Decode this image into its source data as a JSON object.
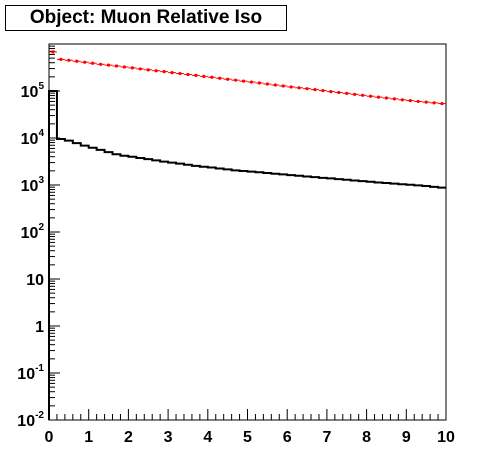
{
  "chart_data": {
    "type": "line",
    "title": "Object: Muon Relative Iso",
    "xlabel": "",
    "ylabel": "",
    "xlim": [
      0,
      10
    ],
    "ylim": [
      0.01,
      1000000
    ],
    "yscale": "log",
    "x_tick_labels": [
      "0",
      "1",
      "2",
      "3",
      "4",
      "5",
      "6",
      "7",
      "8",
      "9",
      "10"
    ],
    "y_tick_labels": [
      {
        "base": "10",
        "exp": "-2"
      },
      {
        "base": "10",
        "exp": "-1"
      },
      {
        "base": "1",
        "exp": ""
      },
      {
        "base": "10",
        "exp": ""
      },
      {
        "base": "10",
        "exp": "2"
      },
      {
        "base": "10",
        "exp": "3"
      },
      {
        "base": "10",
        "exp": "4"
      },
      {
        "base": "10",
        "exp": "5"
      }
    ],
    "y_tick_values": [
      0.01,
      0.1,
      1,
      10,
      100,
      1000,
      10000,
      100000
    ],
    "grid": false,
    "legend": "none",
    "bin_width": 0.2,
    "series": [
      {
        "color": "#000000",
        "style": "step",
        "values": [
          100000,
          9500,
          8800,
          7800,
          6900,
          6200,
          5600,
          5000,
          4500,
          4200,
          4000,
          3750,
          3550,
          3350,
          3150,
          3000,
          2850,
          2700,
          2550,
          2450,
          2350,
          2250,
          2150,
          2050,
          1990,
          1930,
          1870,
          1800,
          1740,
          1680,
          1620,
          1570,
          1520,
          1470,
          1420,
          1380,
          1330,
          1290,
          1250,
          1210,
          1170,
          1130,
          1100,
          1070,
          1040,
          1010,
          980,
          950,
          910,
          880
        ]
      },
      {
        "color": "#ff0000",
        "style": "markers",
        "values": [
          680000,
          470000,
          450000,
          430000,
          410000,
          390000,
          370000,
          355000,
          340000,
          325000,
          310000,
          295000,
          282000,
          270000,
          258000,
          246000,
          235000,
          225000,
          215000,
          205000,
          196000,
          187000,
          178000,
          170000,
          162000,
          155000,
          148000,
          141000,
          134000,
          128000,
          122000,
          117000,
          112000,
          107000,
          102000,
          97000,
          93000,
          89000,
          85000,
          81000,
          77500,
          74000,
          71000,
          68000,
          65000,
          62500,
          60000,
          58000,
          56000,
          54000
        ]
      }
    ]
  }
}
